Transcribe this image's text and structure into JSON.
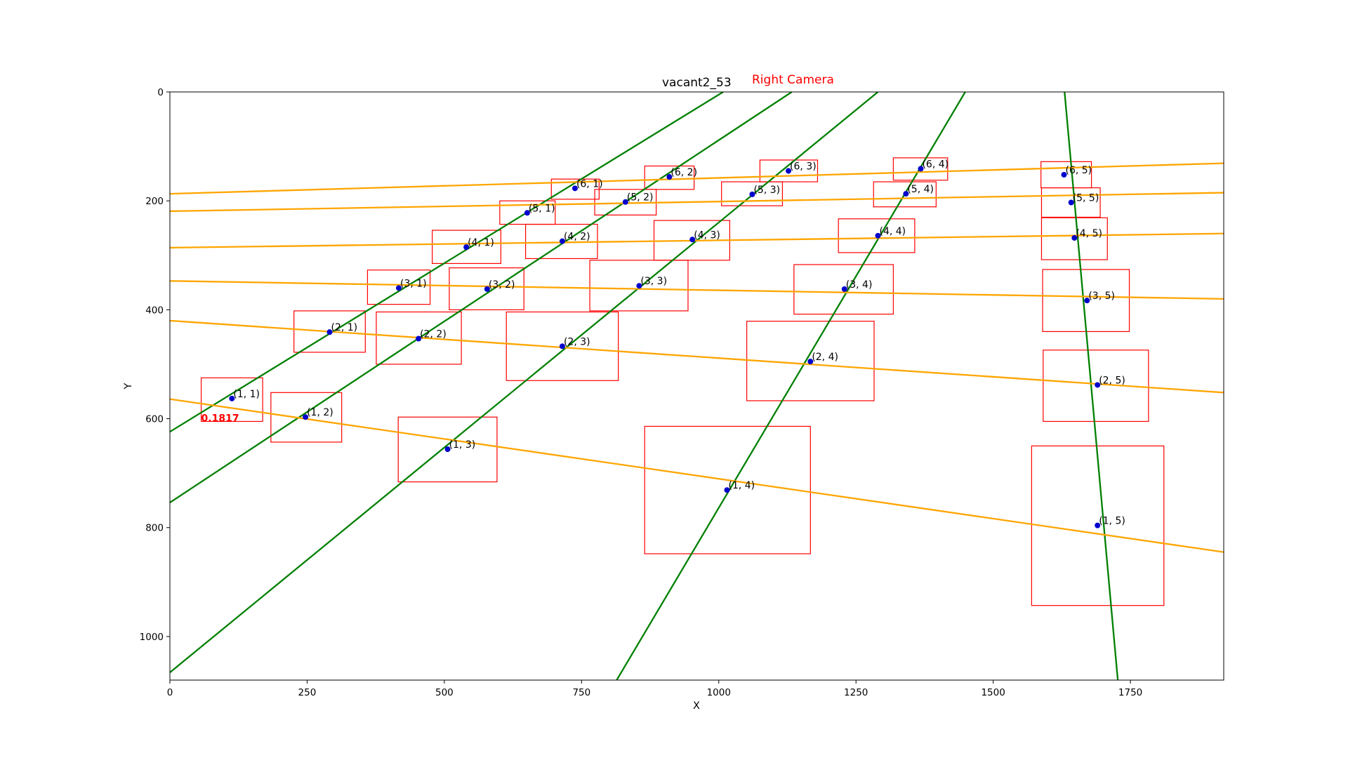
{
  "chart_data": {
    "type": "scatter",
    "title": "vacant2_53",
    "subtitle": "Right Camera",
    "xlabel": "X",
    "ylabel": "Y",
    "xlim": [
      0,
      1920
    ],
    "ylim": [
      1080,
      0
    ],
    "y_inverted": true,
    "grid": false,
    "xticks": [
      0,
      250,
      500,
      750,
      1000,
      1250,
      1500,
      1750
    ],
    "yticks": [
      0,
      200,
      400,
      600,
      800,
      1000
    ],
    "colors": {
      "point": "#0000cc",
      "box": "#ff0000",
      "row_line": "#ffa500",
      "col_line": "#008000",
      "score": "#ff0000"
    },
    "points": [
      {
        "label": "(1, 1)",
        "x": 113,
        "y": 563
      },
      {
        "label": "(1, 2)",
        "x": 247,
        "y": 597
      },
      {
        "label": "(1, 3)",
        "x": 506,
        "y": 656
      },
      {
        "label": "(1, 4)",
        "x": 1015,
        "y": 731
      },
      {
        "label": "(1, 5)",
        "x": 1690,
        "y": 796
      },
      {
        "label": "(2, 1)",
        "x": 291,
        "y": 441
      },
      {
        "label": "(2, 2)",
        "x": 453,
        "y": 453
      },
      {
        "label": "(2, 3)",
        "x": 715,
        "y": 467
      },
      {
        "label": "(2, 4)",
        "x": 1167,
        "y": 495
      },
      {
        "label": "(2, 5)",
        "x": 1690,
        "y": 538
      },
      {
        "label": "(3, 1)",
        "x": 417,
        "y": 360
      },
      {
        "label": "(3, 2)",
        "x": 578,
        "y": 362
      },
      {
        "label": "(3, 3)",
        "x": 855,
        "y": 356
      },
      {
        "label": "(3, 4)",
        "x": 1229,
        "y": 362
      },
      {
        "label": "(3, 5)",
        "x": 1671,
        "y": 383
      },
      {
        "label": "(4, 1)",
        "x": 540,
        "y": 285
      },
      {
        "label": "(4, 2)",
        "x": 715,
        "y": 274
      },
      {
        "label": "(4, 3)",
        "x": 952,
        "y": 271
      },
      {
        "label": "(4, 4)",
        "x": 1290,
        "y": 264
      },
      {
        "label": "(4, 5)",
        "x": 1648,
        "y": 268
      },
      {
        "label": "(5, 1)",
        "x": 651,
        "y": 222
      },
      {
        "label": "(5, 2)",
        "x": 830,
        "y": 202
      },
      {
        "label": "(5, 3)",
        "x": 1061,
        "y": 188
      },
      {
        "label": "(5, 4)",
        "x": 1341,
        "y": 187
      },
      {
        "label": "(5, 5)",
        "x": 1642,
        "y": 203
      },
      {
        "label": "(6, 1)",
        "x": 738,
        "y": 177
      },
      {
        "label": "(6, 2)",
        "x": 910,
        "y": 156
      },
      {
        "label": "(6, 3)",
        "x": 1127,
        "y": 145
      },
      {
        "label": "(6, 4)",
        "x": 1368,
        "y": 141
      },
      {
        "label": "(6, 5)",
        "x": 1629,
        "y": 152
      }
    ],
    "boxes": [
      {
        "x1": 57,
        "y1": 525,
        "x2": 169,
        "y2": 605
      },
      {
        "x1": 184,
        "y1": 552,
        "x2": 313,
        "y2": 643
      },
      {
        "x1": 416,
        "y1": 597,
        "x2": 596,
        "y2": 716
      },
      {
        "x1": 865,
        "y1": 614,
        "x2": 1167,
        "y2": 848
      },
      {
        "x1": 1570,
        "y1": 650,
        "x2": 1811,
        "y2": 943
      },
      {
        "x1": 226,
        "y1": 402,
        "x2": 356,
        "y2": 478
      },
      {
        "x1": 376,
        "y1": 404,
        "x2": 531,
        "y2": 500
      },
      {
        "x1": 613,
        "y1": 404,
        "x2": 817,
        "y2": 530
      },
      {
        "x1": 1051,
        "y1": 421,
        "x2": 1283,
        "y2": 567
      },
      {
        "x1": 1591,
        "y1": 474,
        "x2": 1783,
        "y2": 605
      },
      {
        "x1": 360,
        "y1": 327,
        "x2": 474,
        "y2": 390
      },
      {
        "x1": 509,
        "y1": 323,
        "x2": 645,
        "y2": 400
      },
      {
        "x1": 765,
        "y1": 309,
        "x2": 944,
        "y2": 402
      },
      {
        "x1": 1137,
        "y1": 317,
        "x2": 1318,
        "y2": 408
      },
      {
        "x1": 1590,
        "y1": 326,
        "x2": 1748,
        "y2": 440
      },
      {
        "x1": 478,
        "y1": 254,
        "x2": 603,
        "y2": 315
      },
      {
        "x1": 648,
        "y1": 243,
        "x2": 779,
        "y2": 306
      },
      {
        "x1": 882,
        "y1": 236,
        "x2": 1020,
        "y2": 309
      },
      {
        "x1": 1218,
        "y1": 233,
        "x2": 1357,
        "y2": 295
      },
      {
        "x1": 1588,
        "y1": 231,
        "x2": 1708,
        "y2": 308
      },
      {
        "x1": 601,
        "y1": 200,
        "x2": 702,
        "y2": 243
      },
      {
        "x1": 774,
        "y1": 179,
        "x2": 886,
        "y2": 226
      },
      {
        "x1": 1005,
        "y1": 165,
        "x2": 1116,
        "y2": 209
      },
      {
        "x1": 1282,
        "y1": 165,
        "x2": 1396,
        "y2": 211
      },
      {
        "x1": 1588,
        "y1": 176,
        "x2": 1695,
        "y2": 230
      },
      {
        "x1": 695,
        "y1": 160,
        "x2": 782,
        "y2": 197
      },
      {
        "x1": 865,
        "y1": 136,
        "x2": 955,
        "y2": 179
      },
      {
        "x1": 1075,
        "y1": 125,
        "x2": 1180,
        "y2": 165
      },
      {
        "x1": 1318,
        "y1": 121,
        "x2": 1417,
        "y2": 162
      },
      {
        "x1": 1587,
        "y1": 128,
        "x2": 1679,
        "y2": 176
      }
    ],
    "row_lines": [
      {
        "x1": 0,
        "y1": 564,
        "x2": 1920,
        "y2": 845
      },
      {
        "x1": 0,
        "y1": 420,
        "x2": 1920,
        "y2": 552
      },
      {
        "x1": 0,
        "y1": 347,
        "x2": 1920,
        "y2": 380
      },
      {
        "x1": 0,
        "y1": 286,
        "x2": 1920,
        "y2": 260
      },
      {
        "x1": 0,
        "y1": 219,
        "x2": 1920,
        "y2": 185
      },
      {
        "x1": 0,
        "y1": 187,
        "x2": 1920,
        "y2": 131
      }
    ],
    "col_lines": [
      {
        "x1": 0,
        "y1": 624,
        "x2": 1008,
        "y2": 0
      },
      {
        "x1": 0,
        "y1": 754,
        "x2": 1133,
        "y2": 0
      },
      {
        "x1": 0,
        "y1": 1066,
        "x2": 1290,
        "y2": 0
      },
      {
        "x1": 814,
        "y1": 1080,
        "x2": 1449,
        "y2": 0
      },
      {
        "x1": 1630,
        "y1": 0,
        "x2": 1727,
        "y2": 1080
      }
    ],
    "score_label": {
      "text": "0.1817",
      "x": 57,
      "y": 605
    }
  }
}
